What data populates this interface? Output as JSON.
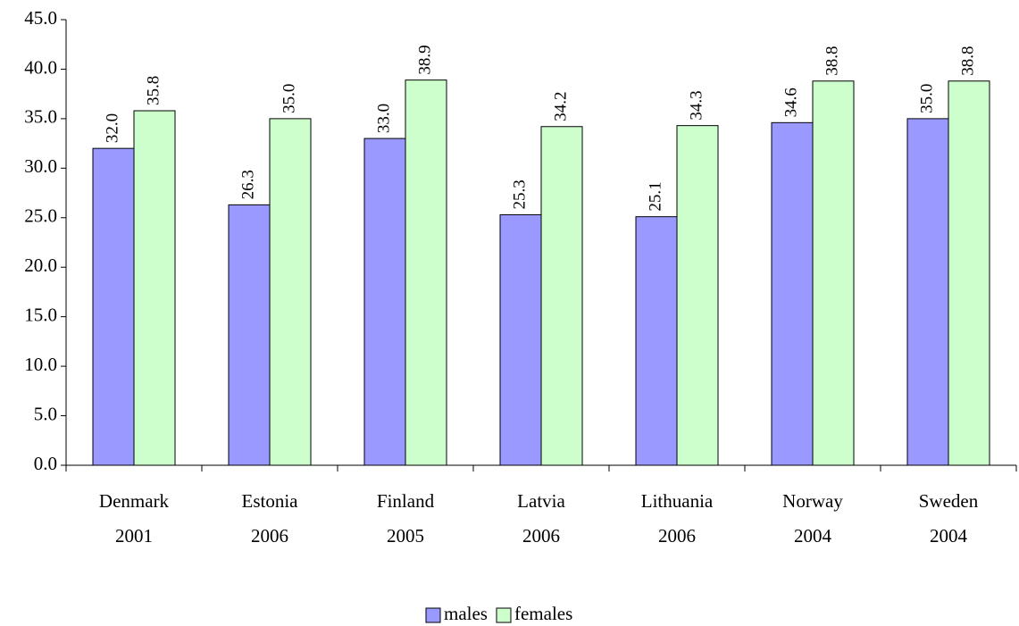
{
  "chart_data": {
    "type": "bar",
    "categories": [
      [
        "Denmark",
        "2001"
      ],
      [
        "Estonia",
        "2006"
      ],
      [
        "Finland",
        "2005"
      ],
      [
        "Latvia",
        "2006"
      ],
      [
        "Lithuania",
        "2006"
      ],
      [
        "Norway",
        "2004"
      ],
      [
        "Sweden",
        "2004"
      ]
    ],
    "series": [
      {
        "name": "males",
        "color": "#9999ff",
        "values": [
          32.0,
          26.3,
          33.0,
          25.3,
          25.1,
          34.6,
          35.0
        ],
        "value_labels": [
          "32.0",
          "26.3",
          "33.0",
          "25.3",
          "25.1",
          "34.6",
          "35.0"
        ]
      },
      {
        "name": "females",
        "color": "#ccffcc",
        "values": [
          35.8,
          35.0,
          38.9,
          34.2,
          34.3,
          38.8,
          38.8
        ],
        "value_labels": [
          "35.8",
          "35.0",
          "38.9",
          "34.2",
          "34.3",
          "38.8",
          "38.8"
        ]
      }
    ],
    "ylim": [
      0,
      45
    ],
    "yticks": [
      {
        "value": 0,
        "label": "0.0"
      },
      {
        "value": 5,
        "label": "5.0"
      },
      {
        "value": 10,
        "label": "10.0"
      },
      {
        "value": 15,
        "label": "15.0"
      },
      {
        "value": 20,
        "label": "20.0"
      },
      {
        "value": 25,
        "label": "25.0"
      },
      {
        "value": 30,
        "label": "30.0"
      },
      {
        "value": 35,
        "label": "35.0"
      },
      {
        "value": 40,
        "label": "40.0"
      },
      {
        "value": 45,
        "label": "45.0"
      }
    ],
    "grid": false,
    "legend": "bottom"
  }
}
